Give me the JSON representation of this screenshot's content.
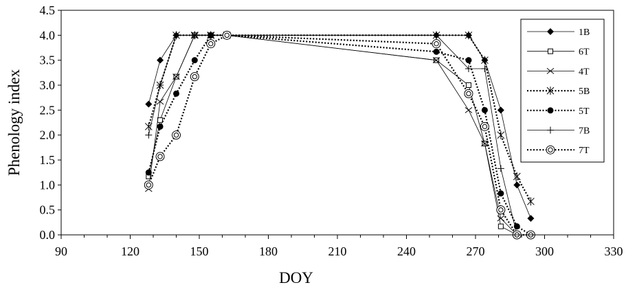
{
  "chart_data": {
    "type": "line",
    "xlabel": "DOY",
    "ylabel": "Phenology index",
    "xlim": [
      90,
      330
    ],
    "ylim": [
      0,
      4.5
    ],
    "xticks": [
      90,
      120,
      150,
      180,
      210,
      240,
      270,
      300,
      330
    ],
    "yticks": [
      0.0,
      0.5,
      1.0,
      1.5,
      2.0,
      2.5,
      3.0,
      3.5,
      4.0,
      4.5
    ],
    "xtick_labels": [
      "90",
      "120",
      "150",
      "180",
      "210",
      "240",
      "270",
      "300",
      "330"
    ],
    "ytick_labels": [
      "0.0",
      "0.5",
      "1.0",
      "1.5",
      "2.0",
      "2.5",
      "3.0",
      "3.5",
      "4.0",
      "4.5"
    ],
    "grid": false,
    "legend_position": "top-right",
    "series": [
      {
        "name": "1B",
        "line": "solid",
        "marker": "diamond",
        "points": [
          [
            128,
            2.62
          ],
          [
            133,
            3.5
          ],
          [
            140,
            4.0
          ],
          [
            148,
            4.0
          ],
          [
            155,
            4.0
          ],
          [
            162,
            4.0
          ],
          [
            253,
            4.0
          ],
          [
            267,
            4.0
          ],
          [
            274,
            3.5
          ],
          [
            281,
            2.5
          ],
          [
            288,
            1.0
          ],
          [
            294,
            0.33
          ]
        ]
      },
      {
        "name": "6T",
        "line": "solid",
        "marker": "square-open",
        "points": [
          [
            128,
            1.17
          ],
          [
            133,
            2.3
          ],
          [
            140,
            3.17
          ],
          [
            148,
            4.0
          ],
          [
            155,
            4.0
          ],
          [
            162,
            4.0
          ],
          [
            253,
            3.5
          ],
          [
            267,
            3.0
          ],
          [
            274,
            1.83
          ],
          [
            281,
            0.17
          ],
          [
            288,
            0.0
          ],
          [
            294,
            0.0
          ]
        ]
      },
      {
        "name": "4T",
        "line": "solid",
        "marker": "x",
        "points": [
          [
            128,
            0.92
          ],
          [
            133,
            2.67
          ],
          [
            140,
            3.17
          ],
          [
            148,
            4.0
          ],
          [
            155,
            4.0
          ],
          [
            162,
            4.0
          ],
          [
            253,
            3.5
          ],
          [
            267,
            2.5
          ],
          [
            274,
            1.83
          ],
          [
            281,
            0.33
          ],
          [
            288,
            0.0
          ],
          [
            294,
            0.0
          ]
        ]
      },
      {
        "name": "5B",
        "line": "dotted",
        "marker": "asterisk",
        "points": [
          [
            128,
            2.17
          ],
          [
            133,
            3.0
          ],
          [
            140,
            4.0
          ],
          [
            148,
            4.0
          ],
          [
            155,
            4.0
          ],
          [
            162,
            4.0
          ],
          [
            253,
            4.0
          ],
          [
            267,
            4.0
          ],
          [
            274,
            3.5
          ],
          [
            281,
            2.0
          ],
          [
            288,
            1.17
          ],
          [
            294,
            0.67
          ]
        ]
      },
      {
        "name": "5T",
        "line": "dotted",
        "marker": "circle-filled",
        "points": [
          [
            128,
            1.25
          ],
          [
            133,
            2.17
          ],
          [
            140,
            2.83
          ],
          [
            148,
            3.5
          ],
          [
            155,
            4.0
          ],
          [
            162,
            4.0
          ],
          [
            253,
            3.67
          ],
          [
            267,
            3.5
          ],
          [
            274,
            2.5
          ],
          [
            281,
            0.83
          ],
          [
            288,
            0.17
          ],
          [
            294,
            0.0
          ]
        ]
      },
      {
        "name": "7B",
        "line": "solid",
        "marker": "plus",
        "points": [
          [
            128,
            2.0
          ],
          [
            133,
            3.0
          ],
          [
            140,
            4.0
          ],
          [
            148,
            4.0
          ],
          [
            155,
            4.0
          ],
          [
            162,
            4.0
          ],
          [
            253,
            4.0
          ],
          [
            267,
            3.33
          ],
          [
            274,
            3.33
          ],
          [
            281,
            1.33
          ],
          [
            288,
            0.0
          ],
          [
            294,
            0.0
          ]
        ]
      },
      {
        "name": "7T",
        "line": "dotted",
        "marker": "circle-open-dot",
        "points": [
          [
            128,
            1.0
          ],
          [
            133,
            1.57
          ],
          [
            140,
            2.0
          ],
          [
            148,
            3.17
          ],
          [
            155,
            3.83
          ],
          [
            162,
            4.0
          ],
          [
            253,
            3.83
          ],
          [
            267,
            2.83
          ],
          [
            274,
            2.17
          ],
          [
            281,
            0.5
          ],
          [
            288,
            0.0
          ],
          [
            294,
            0.0
          ]
        ]
      }
    ]
  }
}
